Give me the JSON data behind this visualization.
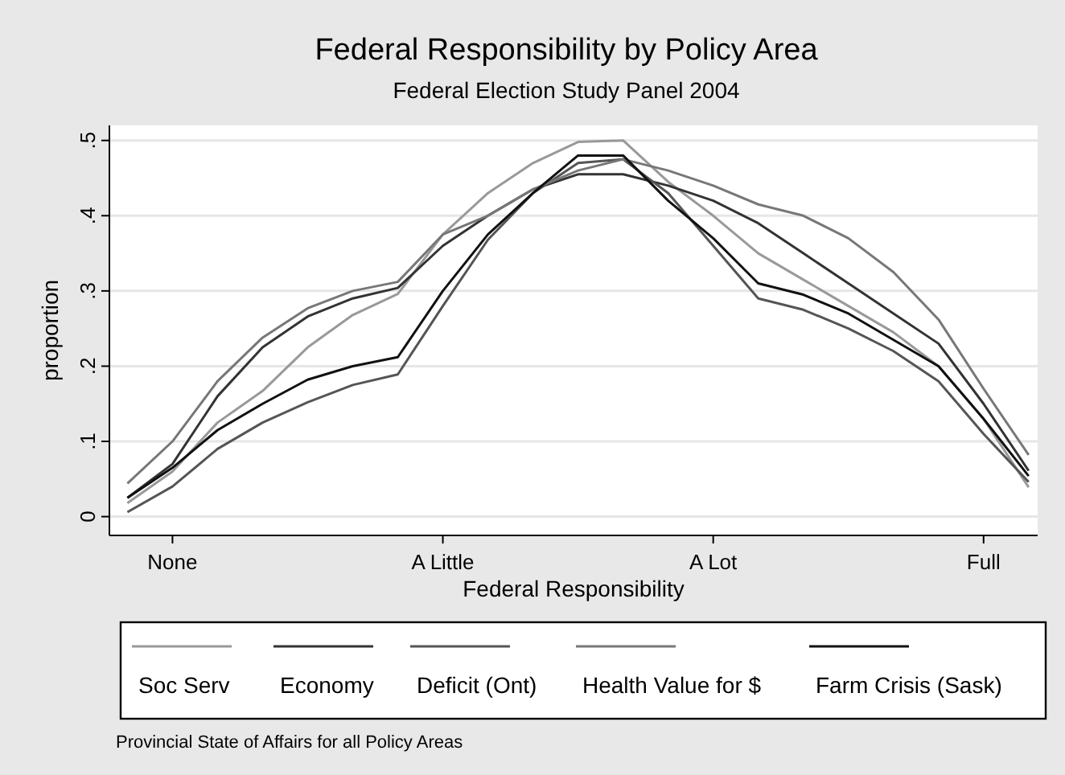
{
  "chart_data": {
    "type": "line",
    "title": "Federal Responsibility by Policy Area",
    "subtitle": "Federal Election Study Panel 2004",
    "xlabel": "Federal Responsibility",
    "ylabel": "proportion",
    "annotations": [
      "Provincial State of Affairs for all Policy Areas"
    ],
    "categories": [
      null,
      "None",
      null,
      null,
      null,
      null,
      null,
      "A Little",
      null,
      null,
      null,
      null,
      null,
      "A Lot",
      null,
      null,
      null,
      null,
      null,
      "Full",
      null
    ],
    "ylim": [
      -0.025,
      0.52
    ],
    "yticks": [
      {
        "value": 0,
        "label": "0"
      },
      {
        "value": 0.1,
        "label": ".1"
      },
      {
        "value": 0.2,
        "label": ".2"
      },
      {
        "value": 0.3,
        "label": ".3"
      },
      {
        "value": 0.4,
        "label": ".4"
      },
      {
        "value": 0.5,
        "label": ".5"
      }
    ],
    "grid": "y",
    "legend": "bottom",
    "line_style": "solid",
    "marker": "none",
    "series": [
      {
        "name": "Soc Serv",
        "color": "#999999",
        "values": [
          0.018,
          0.06,
          0.125,
          0.167,
          0.225,
          0.268,
          0.296,
          0.375,
          0.43,
          0.47,
          0.498,
          0.5,
          0.445,
          0.4,
          0.35,
          0.315,
          0.28,
          0.245,
          0.2,
          0.13,
          0.039
        ]
      },
      {
        "name": "Economy",
        "color": "#333333",
        "values": [
          0.025,
          0.07,
          0.16,
          0.225,
          0.266,
          0.29,
          0.304,
          0.36,
          0.4,
          0.435,
          0.455,
          0.455,
          0.44,
          0.42,
          0.39,
          0.35,
          0.31,
          0.27,
          0.23,
          0.15,
          0.061
        ]
      },
      {
        "name": "Deficit (Ont)",
        "color": "#555555",
        "values": [
          0.006,
          0.04,
          0.09,
          0.125,
          0.152,
          0.175,
          0.189,
          0.28,
          0.368,
          0.43,
          0.47,
          0.475,
          0.43,
          0.36,
          0.29,
          0.275,
          0.25,
          0.22,
          0.18,
          0.11,
          0.046
        ]
      },
      {
        "name": "Health Value for $",
        "color": "#777777",
        "values": [
          0.044,
          0.1,
          0.18,
          0.238,
          0.277,
          0.3,
          0.312,
          0.375,
          0.4,
          0.435,
          0.46,
          0.475,
          0.46,
          0.44,
          0.415,
          0.4,
          0.37,
          0.325,
          0.262,
          0.17,
          0.082
        ]
      },
      {
        "name": "Farm Crisis (Sask)",
        "color": "#111111",
        "values": [
          0.025,
          0.065,
          0.115,
          0.15,
          0.182,
          0.2,
          0.212,
          0.3,
          0.375,
          0.43,
          0.48,
          0.48,
          0.42,
          0.37,
          0.31,
          0.295,
          0.27,
          0.235,
          0.2,
          0.13,
          0.054
        ]
      }
    ]
  }
}
